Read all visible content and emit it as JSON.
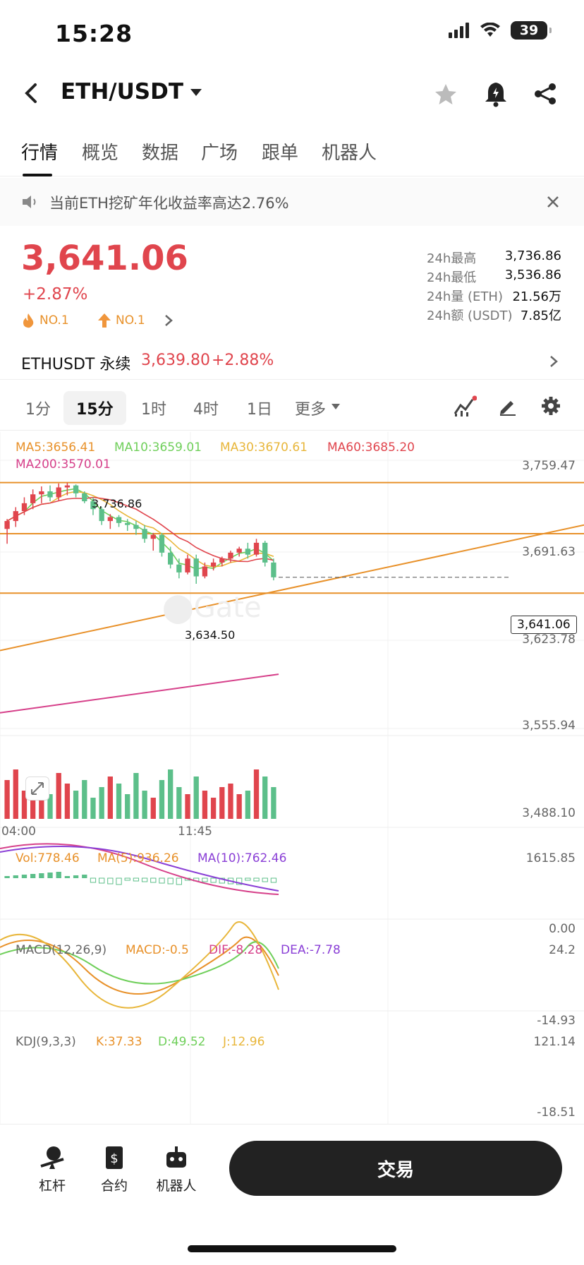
{
  "status": {
    "time": "15:28",
    "battery": "39"
  },
  "nav": {
    "title": "ETH/USDT"
  },
  "tabs": [
    "行情",
    "概览",
    "数据",
    "广场",
    "跟单",
    "机器人"
  ],
  "notice": {
    "text": "当前ETH挖矿年化收益率高达2.76%"
  },
  "ticker": {
    "price": "3,641.06",
    "change": "+2.87%",
    "rank1": "NO.1",
    "rank2": "NO.1",
    "stats": [
      {
        "label": "24h最高",
        "value": "3,736.86"
      },
      {
        "label": "24h最低",
        "value": "3,536.86"
      },
      {
        "label": "24h量 (ETH)",
        "value": "21.56万"
      },
      {
        "label": "24h额 (USDT)",
        "value": "7.85亿"
      }
    ]
  },
  "perpetual": {
    "name": "ETHUSDT 永续",
    "price": "3,639.80",
    "change": "+2.88%"
  },
  "timeframes": [
    "1分",
    "15分",
    "1时",
    "4时",
    "1日",
    "更多"
  ],
  "ma": {
    "ma5": "MA5:3656.41",
    "ma10": "MA10:3659.01",
    "ma30": "MA30:3670.61",
    "ma60": "MA60:3685.20",
    "ma200": "MA200:3570.01"
  },
  "price_axis": [
    "3,759.47",
    "3,691.63",
    "3,623.78",
    "3,555.94",
    "3,488.10"
  ],
  "high_marker": "3,736.86",
  "low_marker": "3,634.50",
  "current_price_tag": "3,641.06",
  "time_axis": [
    "04:00",
    "11:45"
  ],
  "volume": {
    "vol": "Vol:778.46",
    "ma5": "MA(5):936.26",
    "ma10": "MA(10):762.46",
    "max": "1615.85",
    "min": "0.00"
  },
  "macd": {
    "title": "MACD(12,26,9)",
    "macd": "MACD:-0.5",
    "dif": "DIF:-8.28",
    "dea": "DEA:-7.78",
    "max": "24.2",
    "min": "-14.93"
  },
  "kdj": {
    "title": "KDJ(9,3,3)",
    "k": "K:37.33",
    "d": "D:49.52",
    "j": "J:12.96",
    "max": "121.14",
    "min": "-18.51"
  },
  "bottom": {
    "leverage": "杠杆",
    "contract": "合约",
    "robot": "机器人",
    "trade": "交易"
  },
  "colors": {
    "up": "#e0454d",
    "down": "#5cbf8a",
    "accent": "#e8912a"
  },
  "chart_data": {
    "type": "candlestick",
    "ylim": [
      3488.1,
      3759.47
    ],
    "candles": [
      [
        3690,
        3700,
        3675,
        3698
      ],
      [
        3698,
        3712,
        3692,
        3708
      ],
      [
        3708,
        3722,
        3704,
        3716
      ],
      [
        3716,
        3730,
        3710,
        3725
      ],
      [
        3725,
        3733,
        3716,
        3728
      ],
      [
        3728,
        3734,
        3718,
        3722
      ],
      [
        3722,
        3736,
        3718,
        3732
      ],
      [
        3732,
        3736.86,
        3724,
        3734
      ],
      [
        3734,
        3735,
        3722,
        3726
      ],
      [
        3726,
        3728,
        3716,
        3718
      ],
      [
        3718,
        3722,
        3704,
        3710
      ],
      [
        3710,
        3712,
        3694,
        3698
      ],
      [
        3698,
        3705,
        3690,
        3702
      ],
      [
        3702,
        3704,
        3692,
        3696
      ],
      [
        3696,
        3700,
        3688,
        3694
      ],
      [
        3694,
        3698,
        3684,
        3690
      ],
      [
        3690,
        3694,
        3676,
        3680
      ],
      [
        3680,
        3686,
        3668,
        3684
      ],
      [
        3684,
        3686,
        3662,
        3666
      ],
      [
        3666,
        3672,
        3650,
        3654
      ],
      [
        3654,
        3660,
        3640,
        3646
      ],
      [
        3646,
        3664,
        3644,
        3660
      ],
      [
        3660,
        3664,
        3634.5,
        3642
      ],
      [
        3642,
        3656,
        3640,
        3652
      ],
      [
        3652,
        3660,
        3648,
        3656
      ],
      [
        3656,
        3662,
        3652,
        3660
      ],
      [
        3660,
        3668,
        3656,
        3666
      ],
      [
        3666,
        3672,
        3662,
        3670
      ],
      [
        3670,
        3676,
        3660,
        3664
      ],
      [
        3664,
        3680,
        3662,
        3676
      ],
      [
        3676,
        3678,
        3652,
        3656
      ],
      [
        3656,
        3660,
        3638,
        3641.06
      ]
    ]
  }
}
